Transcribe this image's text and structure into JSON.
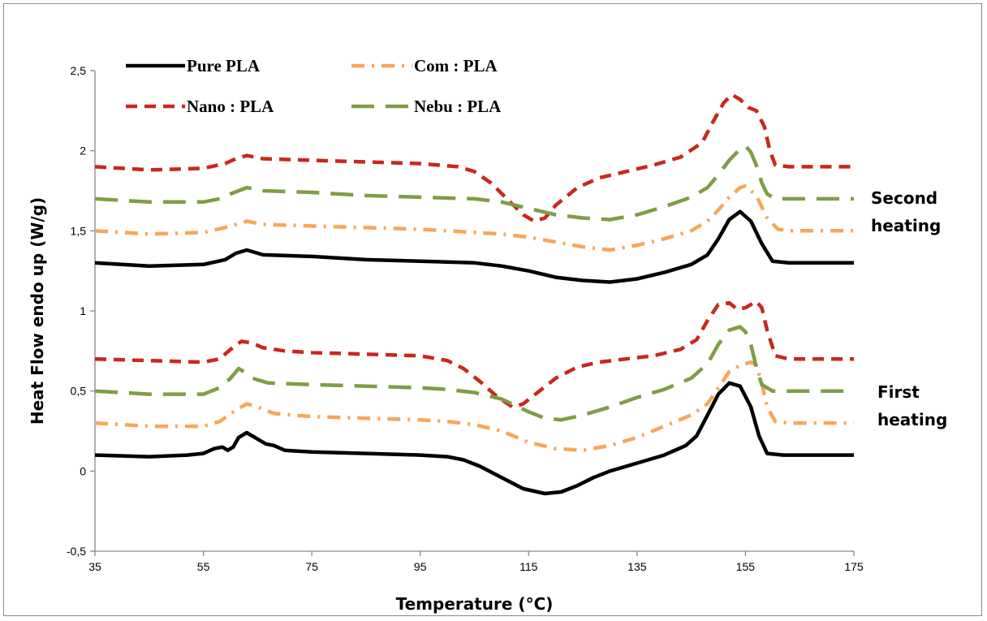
{
  "chart_data": {
    "type": "line",
    "xlabel": "Temperature (°C)",
    "ylabel": "Heat Flow endo up (W/g)",
    "xlim": [
      35,
      175
    ],
    "ylim": [
      -0.5,
      2.5
    ],
    "x_ticks": [
      35,
      55,
      75,
      95,
      115,
      135,
      155,
      175
    ],
    "x_tick_labels": [
      "35",
      "55",
      "75",
      "95",
      "115",
      "135",
      "155",
      "175"
    ],
    "y_ticks": [
      -0.5,
      0,
      0.5,
      1,
      1.5,
      2,
      2.5
    ],
    "y_tick_labels": [
      "-0,5",
      "0",
      "0,5",
      "1",
      "1,5",
      "2",
      "2,5"
    ],
    "grid": false,
    "legend_position": "top-left",
    "annotations": [
      {
        "text_lines": [
          "Second",
          "heating"
        ],
        "x": 175,
        "y": 1.55
      },
      {
        "text_lines": [
          "First",
          "heating"
        ],
        "x": 175,
        "y": 0.4
      }
    ],
    "series": [
      {
        "name": "Pure PLA",
        "color": "#000000",
        "dash": "solid",
        "runs": [
          [
            [
              35,
              1.3
            ],
            [
              45,
              1.28
            ],
            [
              55,
              1.29
            ],
            [
              59,
              1.32
            ],
            [
              61,
              1.36
            ],
            [
              63,
              1.38
            ],
            [
              66,
              1.35
            ],
            [
              75,
              1.34
            ],
            [
              85,
              1.32
            ],
            [
              95,
              1.31
            ],
            [
              105,
              1.3
            ],
            [
              110,
              1.28
            ],
            [
              115,
              1.25
            ],
            [
              120,
              1.21
            ],
            [
              125,
              1.19
            ],
            [
              130,
              1.18
            ],
            [
              135,
              1.2
            ],
            [
              140,
              1.24
            ],
            [
              145,
              1.29
            ],
            [
              148,
              1.35
            ],
            [
              150,
              1.45
            ],
            [
              152,
              1.57
            ],
            [
              154,
              1.62
            ],
            [
              156,
              1.56
            ],
            [
              158,
              1.42
            ],
            [
              160,
              1.31
            ],
            [
              163,
              1.3
            ],
            [
              175,
              1.3
            ]
          ],
          [
            [
              35,
              0.1
            ],
            [
              45,
              0.09
            ],
            [
              52,
              0.1
            ],
            [
              55,
              0.11
            ],
            [
              57,
              0.14
            ],
            [
              58.5,
              0.15
            ],
            [
              59.5,
              0.13
            ],
            [
              60.5,
              0.15
            ],
            [
              61.5,
              0.21
            ],
            [
              63,
              0.24
            ],
            [
              65,
              0.2
            ],
            [
              66.5,
              0.17
            ],
            [
              68,
              0.16
            ],
            [
              70,
              0.13
            ],
            [
              75,
              0.12
            ],
            [
              85,
              0.11
            ],
            [
              95,
              0.1
            ],
            [
              100,
              0.09
            ],
            [
              103,
              0.07
            ],
            [
              106,
              0.03
            ],
            [
              110,
              -0.04
            ],
            [
              114,
              -0.11
            ],
            [
              118,
              -0.14
            ],
            [
              121,
              -0.13
            ],
            [
              124,
              -0.09
            ],
            [
              127,
              -0.04
            ],
            [
              130,
              0.0
            ],
            [
              135,
              0.05
            ],
            [
              140,
              0.1
            ],
            [
              144,
              0.16
            ],
            [
              146,
              0.22
            ],
            [
              148,
              0.35
            ],
            [
              150,
              0.48
            ],
            [
              152,
              0.55
            ],
            [
              154,
              0.53
            ],
            [
              156,
              0.4
            ],
            [
              157.5,
              0.22
            ],
            [
              159,
              0.11
            ],
            [
              162,
              0.1
            ],
            [
              175,
              0.1
            ]
          ]
        ]
      },
      {
        "name": "Com : PLA",
        "color": "#f6a75a",
        "dash": "dashdot",
        "runs": [
          [
            [
              35,
              1.5
            ],
            [
              45,
              1.48
            ],
            [
              55,
              1.49
            ],
            [
              59,
              1.52
            ],
            [
              63,
              1.56
            ],
            [
              66,
              1.54
            ],
            [
              75,
              1.53
            ],
            [
              85,
              1.52
            ],
            [
              95,
              1.51
            ],
            [
              105,
              1.49
            ],
            [
              110,
              1.48
            ],
            [
              115,
              1.46
            ],
            [
              120,
              1.43
            ],
            [
              125,
              1.4
            ],
            [
              130,
              1.38
            ],
            [
              135,
              1.41
            ],
            [
              140,
              1.45
            ],
            [
              145,
              1.5
            ],
            [
              148,
              1.56
            ],
            [
              150,
              1.63
            ],
            [
              152,
              1.71
            ],
            [
              154,
              1.77
            ],
            [
              155,
              1.78
            ],
            [
              157,
              1.72
            ],
            [
              159,
              1.58
            ],
            [
              161,
              1.51
            ],
            [
              163,
              1.5
            ],
            [
              175,
              1.5
            ]
          ],
          [
            [
              35,
              0.3
            ],
            [
              45,
              0.28
            ],
            [
              55,
              0.28
            ],
            [
              58,
              0.31
            ],
            [
              61,
              0.38
            ],
            [
              63,
              0.42
            ],
            [
              65,
              0.4
            ],
            [
              68,
              0.36
            ],
            [
              75,
              0.34
            ],
            [
              85,
              0.33
            ],
            [
              95,
              0.32
            ],
            [
              100,
              0.31
            ],
            [
              105,
              0.29
            ],
            [
              110,
              0.25
            ],
            [
              115,
              0.18
            ],
            [
              120,
              0.14
            ],
            [
              125,
              0.13
            ],
            [
              130,
              0.16
            ],
            [
              135,
              0.21
            ],
            [
              140,
              0.28
            ],
            [
              145,
              0.35
            ],
            [
              148,
              0.42
            ],
            [
              150,
              0.52
            ],
            [
              152,
              0.62
            ],
            [
              154,
              0.66
            ],
            [
              156,
              0.68
            ],
            [
              157,
              0.66
            ],
            [
              158,
              0.55
            ],
            [
              159,
              0.4
            ],
            [
              160.5,
              0.31
            ],
            [
              163,
              0.3
            ],
            [
              175,
              0.3
            ]
          ]
        ]
      },
      {
        "name": "Nano : PLA",
        "color": "#c8281d",
        "dash": "dashed",
        "runs": [
          [
            [
              35,
              1.9
            ],
            [
              45,
              1.88
            ],
            [
              55,
              1.89
            ],
            [
              59,
              1.92
            ],
            [
              61,
              1.95
            ],
            [
              63,
              1.97
            ],
            [
              66,
              1.95
            ],
            [
              75,
              1.94
            ],
            [
              85,
              1.93
            ],
            [
              95,
              1.92
            ],
            [
              102,
              1.9
            ],
            [
              105,
              1.87
            ],
            [
              108,
              1.8
            ],
            [
              111,
              1.7
            ],
            [
              114,
              1.6
            ],
            [
              116,
              1.56
            ],
            [
              118,
              1.58
            ],
            [
              120,
              1.66
            ],
            [
              124,
              1.77
            ],
            [
              128,
              1.83
            ],
            [
              133,
              1.87
            ],
            [
              138,
              1.91
            ],
            [
              143,
              1.96
            ],
            [
              147,
              2.05
            ],
            [
              149,
              2.18
            ],
            [
              151,
              2.3
            ],
            [
              152.5,
              2.35
            ],
            [
              154,
              2.32
            ],
            [
              155.5,
              2.27
            ],
            [
              157,
              2.25
            ],
            [
              158.5,
              2.15
            ],
            [
              159.5,
              2.0
            ],
            [
              160.5,
              1.91
            ],
            [
              163,
              1.9
            ],
            [
              175,
              1.9
            ]
          ],
          [
            [
              35,
              0.7
            ],
            [
              45,
              0.69
            ],
            [
              55,
              0.68
            ],
            [
              58,
              0.7
            ],
            [
              60,
              0.76
            ],
            [
              62,
              0.81
            ],
            [
              64,
              0.8
            ],
            [
              66,
              0.77
            ],
            [
              70,
              0.75
            ],
            [
              75,
              0.74
            ],
            [
              85,
              0.73
            ],
            [
              95,
              0.72
            ],
            [
              100,
              0.69
            ],
            [
              103,
              0.64
            ],
            [
              106,
              0.56
            ],
            [
              109,
              0.47
            ],
            [
              112,
              0.4
            ],
            [
              114,
              0.42
            ],
            [
              117,
              0.5
            ],
            [
              120,
              0.58
            ],
            [
              124,
              0.65
            ],
            [
              128,
              0.68
            ],
            [
              133,
              0.7
            ],
            [
              138,
              0.72
            ],
            [
              143,
              0.76
            ],
            [
              146,
              0.82
            ],
            [
              148,
              0.94
            ],
            [
              150,
              1.04
            ],
            [
              152,
              1.05
            ],
            [
              153.5,
              1.01
            ],
            [
              155,
              1.02
            ],
            [
              157,
              1.06
            ],
            [
              158,
              1.02
            ],
            [
              159,
              0.88
            ],
            [
              160.5,
              0.72
            ],
            [
              163,
              0.7
            ],
            [
              175,
              0.7
            ]
          ]
        ]
      },
      {
        "name": "Nebu : PLA",
        "color": "#7f9d45",
        "dash": "longdash",
        "runs": [
          [
            [
              35,
              1.7
            ],
            [
              45,
              1.68
            ],
            [
              55,
              1.68
            ],
            [
              58,
              1.7
            ],
            [
              60,
              1.73
            ],
            [
              63,
              1.77
            ],
            [
              66,
              1.75
            ],
            [
              75,
              1.74
            ],
            [
              85,
              1.72
            ],
            [
              95,
              1.71
            ],
            [
              105,
              1.7
            ],
            [
              110,
              1.68
            ],
            [
              115,
              1.64
            ],
            [
              120,
              1.6
            ],
            [
              125,
              1.58
            ],
            [
              130,
              1.57
            ],
            [
              135,
              1.6
            ],
            [
              140,
              1.65
            ],
            [
              145,
              1.71
            ],
            [
              148,
              1.77
            ],
            [
              150,
              1.85
            ],
            [
              152,
              1.94
            ],
            [
              154,
              2.01
            ],
            [
              155,
              2.03
            ],
            [
              156,
              1.99
            ],
            [
              157,
              1.91
            ],
            [
              158,
              1.8
            ],
            [
              159,
              1.73
            ],
            [
              160.5,
              1.7
            ],
            [
              163,
              1.7
            ],
            [
              175,
              1.7
            ]
          ],
          [
            [
              35,
              0.5
            ],
            [
              45,
              0.48
            ],
            [
              55,
              0.48
            ],
            [
              58,
              0.52
            ],
            [
              60,
              0.58
            ],
            [
              61.5,
              0.64
            ],
            [
              62.5,
              0.62
            ],
            [
              64,
              0.58
            ],
            [
              67,
              0.55
            ],
            [
              75,
              0.54
            ],
            [
              85,
              0.53
            ],
            [
              95,
              0.52
            ],
            [
              100,
              0.51
            ],
            [
              105,
              0.49
            ],
            [
              110,
              0.45
            ],
            [
              115,
              0.37
            ],
            [
              118,
              0.33
            ],
            [
              121,
              0.32
            ],
            [
              125,
              0.35
            ],
            [
              130,
              0.4
            ],
            [
              135,
              0.46
            ],
            [
              140,
              0.51
            ],
            [
              145,
              0.58
            ],
            [
              148,
              0.67
            ],
            [
              150,
              0.79
            ],
            [
              152,
              0.88
            ],
            [
              154,
              0.9
            ],
            [
              155,
              0.87
            ],
            [
              156,
              0.79
            ],
            [
              157,
              0.65
            ],
            [
              158,
              0.54
            ],
            [
              160,
              0.5
            ],
            [
              175,
              0.5
            ]
          ]
        ]
      }
    ]
  }
}
